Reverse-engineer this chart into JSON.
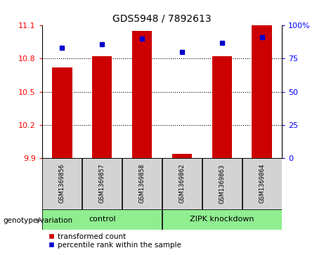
{
  "title": "GDS5948 / 7892613",
  "samples": [
    "GSM1369856",
    "GSM1369857",
    "GSM1369858",
    "GSM1369862",
    "GSM1369863",
    "GSM1369864"
  ],
  "red_values": [
    10.72,
    10.82,
    11.05,
    9.94,
    10.82,
    11.1
  ],
  "blue_values": [
    83,
    86,
    90,
    80,
    87,
    91
  ],
  "ylim_left": [
    9.9,
    11.1
  ],
  "ylim_right": [
    0,
    100
  ],
  "yticks_left": [
    9.9,
    10.2,
    10.5,
    10.8,
    11.1
  ],
  "yticks_right": [
    0,
    25,
    50,
    75,
    100
  ],
  "ytick_labels_right": [
    "0",
    "25",
    "50",
    "75",
    "100%"
  ],
  "bar_color": "#CC0000",
  "dot_color": "#0000CC",
  "bg_sample_box": "#D3D3D3",
  "bg_group_box": "#90EE90",
  "legend_red_label": "transformed count",
  "legend_blue_label": "percentile rank within the sample",
  "genotype_label": "genotype/variation",
  "bar_width": 0.5,
  "group_ranges": [
    [
      0,
      2,
      "control"
    ],
    [
      3,
      5,
      "ZIPK knockdown"
    ]
  ]
}
